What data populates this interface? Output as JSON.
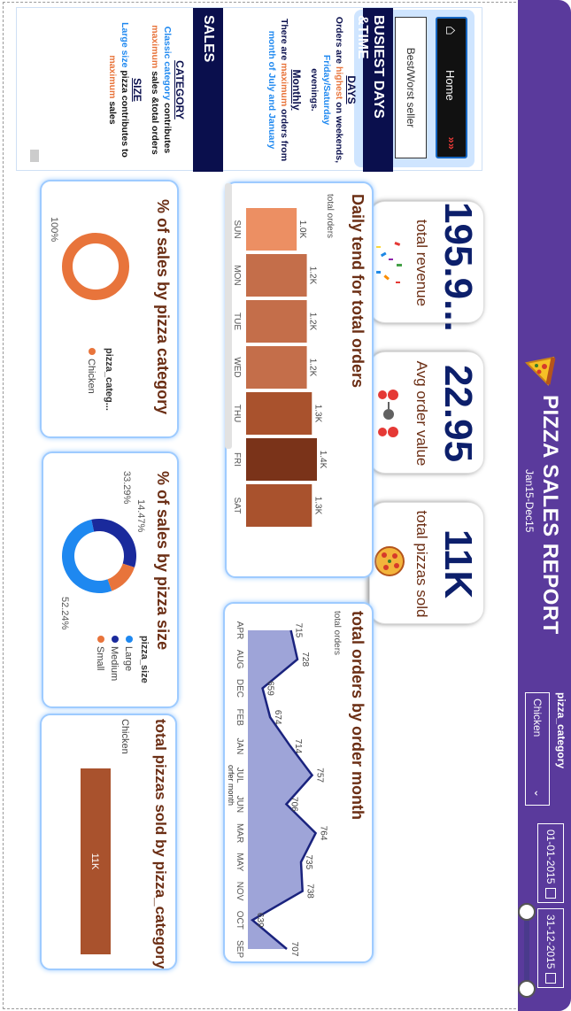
{
  "header": {
    "title": "PIZZA SALES REPORT",
    "subtitle": "Jan15-Dec15",
    "filter_label": "pizza_category",
    "filter_value": "Chicken",
    "date_from": "01-01-2015",
    "date_to": "31-12-2015",
    "icon": "pizza-slice-icon"
  },
  "kpis": [
    {
      "value": "11K",
      "label": "total pizzas sold",
      "icon": "pizza-icon"
    },
    {
      "value": "22.95",
      "label": "Avg order value",
      "icon": "order-flow-icon"
    },
    {
      "value": "195.9...",
      "label": "total revenue",
      "icon": "confetti-icon"
    }
  ],
  "insights": {
    "nav": {
      "home_label": "Home",
      "switch_label": "Best/Worst seller"
    },
    "busy_title": "BUSIEST DAYS &TIME",
    "days_heading": "DAYS",
    "days_line1_a": "Orders are ",
    "days_line1_b": "highest",
    "days_line1_c": " on weekends,",
    "days_line2": "Friday/Saturday",
    "days_line3": "evenings.",
    "monthly_heading": "Monthly",
    "monthly_line1_a": "There are ",
    "monthly_line1_b": "maximum",
    "monthly_line1_c": " orders from",
    "monthly_line2": "month of July and January",
    "sales_title": "SALES",
    "category_heading": "CATEGORY",
    "cat_line1_a": "Classic category",
    "cat_line1_b": " contributes",
    "cat_line2_a": "maximum",
    "cat_line2_b": " sales &total orders",
    "size_heading": "SIZE",
    "size_line1_a": "Large size",
    "size_line1_b": " pizza contributes to",
    "size_line2_a": "maximum",
    "size_line2_b": " sales"
  },
  "colors": {
    "header_purple": "#5a3a9c",
    "navy": "#0a0f4d",
    "brown": "#a9522d",
    "kpi_blue": "#0c1f6b",
    "title_brown": "#6b2e14",
    "area": "#9ea4d8",
    "line": "#1a237e",
    "size_large": "#1e88f0",
    "size_medium": "#1a2a9c",
    "size_small": "#e8743b",
    "category_chicken": "#e8743b"
  },
  "chart_data": [
    {
      "type": "bar",
      "title": "Daily tend for total orders",
      "legend": "total orders",
      "categories": [
        "SUN",
        "MON",
        "TUE",
        "WED",
        "THU",
        "FRI",
        "SAT"
      ],
      "values": [
        1.0,
        1.2,
        1.2,
        1.2,
        1.3,
        1.4,
        1.3
      ],
      "labels": [
        "1.0K",
        "1.2K",
        "1.2K",
        "1.2K",
        "1.3K",
        "1.4K",
        "1.3K"
      ],
      "bar_colors": [
        "#ec8f63",
        "#c46e4a",
        "#c46e4a",
        "#c46e4a",
        "#a9522d",
        "#7a3319",
        "#a9522d"
      ]
    },
    {
      "type": "area",
      "title": "total orders by order month",
      "legend": "total orders",
      "xlabel": "orfer month",
      "categories": [
        "APR",
        "AUG",
        "DEC",
        "FEB",
        "JAN",
        "JUL",
        "JUN",
        "MAR",
        "MAY",
        "NOV",
        "OCT",
        "SEP"
      ],
      "values": [
        715,
        728,
        659,
        674,
        714,
        757,
        706,
        764,
        735,
        738,
        639,
        707
      ]
    },
    {
      "type": "pie",
      "title": "% of sales by pizza category",
      "legend_title": "pizza_categ...",
      "slices": [
        {
          "name": "Chicken",
          "value": 100,
          "label": "100%"
        }
      ]
    },
    {
      "type": "pie",
      "title": "% of sales by pizza size",
      "legend_title": "pizza_size",
      "slices": [
        {
          "name": "Large",
          "value": 52.24,
          "label": "52.24%"
        },
        {
          "name": "Medium",
          "value": 33.29,
          "label": "33.29%"
        },
        {
          "name": "Small",
          "value": 14.47,
          "label": "14.47%"
        }
      ]
    },
    {
      "type": "bar",
      "title": "total pizzas sold by pizza_category",
      "categories": [
        "Chicken"
      ],
      "values": [
        11
      ],
      "labels": [
        "11K"
      ]
    }
  ]
}
